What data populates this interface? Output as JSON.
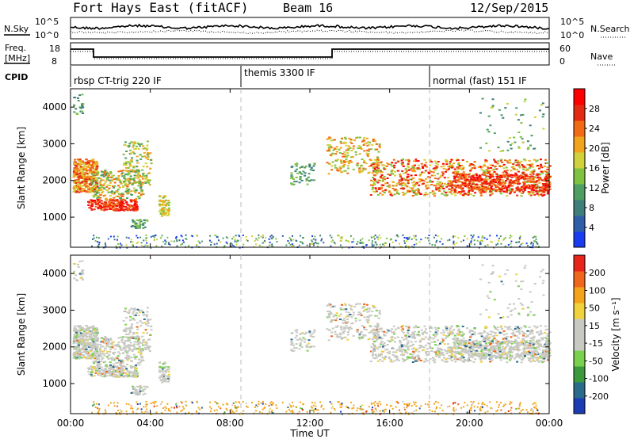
{
  "header": {
    "station": "Fort Hays East (fitACF)",
    "beam": "Beam 16",
    "date": "12/Sep/2015"
  },
  "side_labels": {
    "nsky": "N.Sky",
    "nsearch": "N.Search",
    "freq_line1": "Freq.",
    "freq_line2": "[MHz]",
    "nave": "Nave",
    "cpid": "CPID"
  },
  "noise_ticks_left": [
    "10^5",
    "10^0"
  ],
  "noise_ticks_right": [
    "10^5",
    "10^0"
  ],
  "freq_ticks": [
    "18",
    "8"
  ],
  "nave_ticks": [
    "60",
    "0"
  ],
  "cpid_segments": [
    {
      "label": "rbsp CT-trig 220 IF",
      "start_hour": 0
    },
    {
      "label": "themis 3300 IF",
      "start_hour": 8.6
    },
    {
      "label": "normal (fast) 151 IF",
      "start_hour": 18
    }
  ],
  "chart_data": [
    {
      "type": "heatmap",
      "name": "power-panel",
      "ylabel": "Slant Range [km]",
      "yticks": [
        "4000",
        "3000",
        "2000",
        "1000"
      ],
      "ytick_values": [
        4000,
        3000,
        2000,
        1000
      ],
      "ylim": [
        180,
        4500
      ],
      "colorbar_label": "Power [dB]",
      "colorbar_ticks": [
        "28",
        "24",
        "20",
        "16",
        "12",
        "8",
        "4"
      ],
      "colorbar_colors": [
        "#1a3cf0",
        "#2f5fa8",
        "#3f7f7a",
        "#4f9e63",
        "#7fc240",
        "#cfd23a",
        "#f2a51c",
        "#f26a14",
        "#e52a12",
        "#ff0000"
      ]
    },
    {
      "type": "heatmap",
      "name": "velocity-panel",
      "ylabel": "Slant Range [km]",
      "yticks": [
        "4000",
        "3000",
        "2000",
        "1000"
      ],
      "ytick_values": [
        4000,
        3000,
        2000,
        1000
      ],
      "ylim": [
        180,
        4500
      ],
      "colorbar_label": "Velocity [m s⁻¹]",
      "colorbar_ticks": [
        "200",
        "100",
        "50",
        "15",
        "-15",
        "-50",
        "-100",
        "-200"
      ],
      "colorbar_colors": [
        "#1c3cb4",
        "#2a6b8c",
        "#3c9a3c",
        "#7ad14e",
        "#c9c9c4",
        "#c9c9c4",
        "#f2d23a",
        "#f5a41a",
        "#f0661a",
        "#e8251a"
      ]
    }
  ],
  "time_axis": {
    "xlabel": "Time UT",
    "ticks": [
      "00:00",
      "04:00",
      "08:00",
      "12:00",
      "16:00",
      "20:00",
      "00:00"
    ],
    "tick_hours": [
      0,
      4,
      8,
      12,
      16,
      20,
      24
    ]
  },
  "colors": {
    "frame": "#000000",
    "dashed": "#bbbbbb",
    "ground": "#f2a51c"
  }
}
